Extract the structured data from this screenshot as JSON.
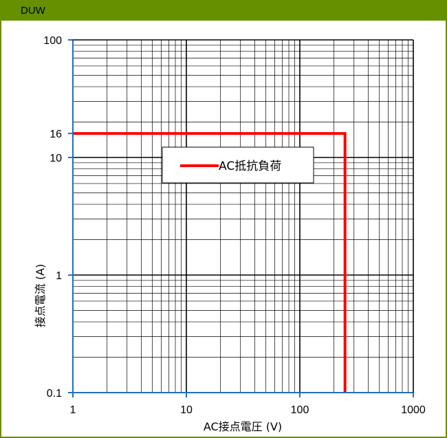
{
  "header": {
    "title": "DUW"
  },
  "chart_data": {
    "type": "line",
    "x_scale": "log",
    "y_scale": "log",
    "xlim": [
      1,
      1000
    ],
    "ylim": [
      0.1,
      100
    ],
    "x_ticks": [
      1,
      10,
      100,
      1000
    ],
    "x_tick_labels": [
      "1",
      "10",
      "100",
      "1000"
    ],
    "y_ticks": [
      0.1,
      1,
      10,
      16,
      100
    ],
    "y_tick_labels": [
      "0.1",
      "1",
      "10",
      "16",
      "100"
    ],
    "xlabel": "AC接点電圧 (V)",
    "ylabel": "接点電流 (A)",
    "grid": true,
    "legend_position": "center",
    "series": [
      {
        "name": "AC抵抗負荷",
        "color": "#ff0000",
        "points": [
          [
            1,
            16
          ],
          [
            250,
            16
          ],
          [
            250,
            0.1
          ]
        ]
      }
    ]
  },
  "colors": {
    "axis": "#1f6fbf",
    "series": "#ff0000",
    "header": "#669000",
    "frame": "#6b8e00"
  }
}
